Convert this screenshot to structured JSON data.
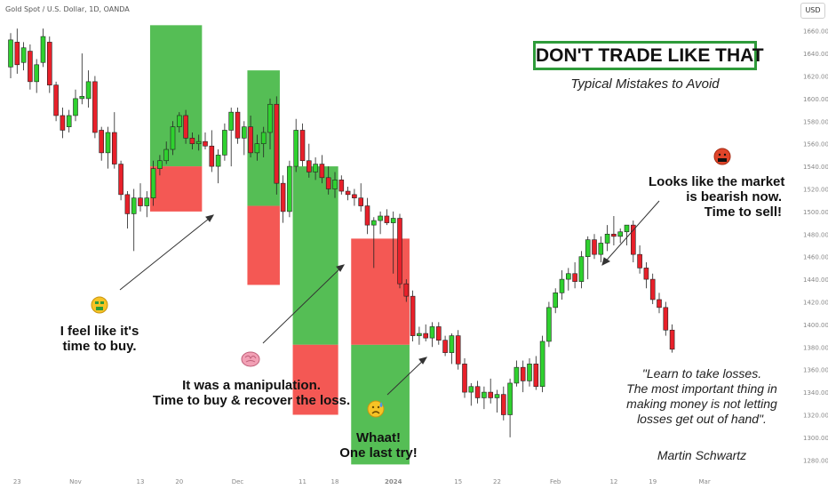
{
  "symbol": "Gold Spot / U.S. Dollar, 1D, OANDA",
  "currency": "USD",
  "headline": "DON'T TRADE LIKE THAT",
  "subheadline": "Typical Mistakes to Avoid",
  "notes": {
    "buy": [
      "I feel like it's",
      "time to buy."
    ],
    "manipulation": [
      "It was a manipulation.",
      "Time to buy & recover the loss."
    ],
    "last_try": [
      "Whaat!",
      "One last try!"
    ],
    "bearish": [
      "Looks like the market",
      "is bearish now.",
      "Time to sell!"
    ]
  },
  "quote": [
    "\"Learn to take losses.",
    "The most important thing in",
    "making money is not letting",
    "losses get out of hand\"."
  ],
  "quote_author": "Martin Schwartz",
  "icons": {
    "buy": "money-mouth-face-icon",
    "manipulation": "brain-icon",
    "last_try": "sad-sweat-face-icon",
    "bearish": "cursing-face-icon"
  },
  "colors": {
    "up_candle": "#2fd12f",
    "down_candle": "#e8202a",
    "profit_zone": "#4cbb4c",
    "loss_zone": "#f23b36",
    "headline_border": "#2e9b3a"
  },
  "chart_data": {
    "type": "candlestick",
    "title": "Gold Spot / U.S. Dollar, 1D, OANDA",
    "ylim": [
      1270,
      1670
    ],
    "y_ticks": [
      1280,
      1300,
      1320,
      1340,
      1360,
      1380,
      1400,
      1420,
      1440,
      1460,
      1480,
      1500,
      1520,
      1540,
      1560,
      1580,
      1600,
      1620,
      1640,
      1660
    ],
    "x_tick_labels": [
      "23",
      "Nov",
      "13",
      "20",
      "Dec",
      "11",
      "18",
      "2024",
      "15",
      "22",
      "Feb",
      "12",
      "19",
      "Mar"
    ],
    "x_tick_indices": [
      1,
      10,
      20,
      26,
      35,
      45,
      50,
      59,
      69,
      75,
      84,
      93,
      99,
      107
    ],
    "candles": [
      {
        "o": 1628,
        "h": 1658,
        "l": 1618,
        "c": 1652
      },
      {
        "o": 1650,
        "h": 1662,
        "l": 1622,
        "c": 1630
      },
      {
        "o": 1632,
        "h": 1650,
        "l": 1625,
        "c": 1645
      },
      {
        "o": 1642,
        "h": 1648,
        "l": 1608,
        "c": 1615
      },
      {
        "o": 1615,
        "h": 1635,
        "l": 1605,
        "c": 1630
      },
      {
        "o": 1632,
        "h": 1662,
        "l": 1628,
        "c": 1655
      },
      {
        "o": 1650,
        "h": 1655,
        "l": 1605,
        "c": 1612
      },
      {
        "o": 1612,
        "h": 1615,
        "l": 1580,
        "c": 1585
      },
      {
        "o": 1585,
        "h": 1592,
        "l": 1565,
        "c": 1572
      },
      {
        "o": 1575,
        "h": 1590,
        "l": 1570,
        "c": 1585
      },
      {
        "o": 1585,
        "h": 1608,
        "l": 1580,
        "c": 1600
      },
      {
        "o": 1600,
        "h": 1640,
        "l": 1595,
        "c": 1602
      },
      {
        "o": 1600,
        "h": 1625,
        "l": 1592,
        "c": 1615
      },
      {
        "o": 1615,
        "h": 1620,
        "l": 1565,
        "c": 1570
      },
      {
        "o": 1572,
        "h": 1575,
        "l": 1545,
        "c": 1552
      },
      {
        "o": 1552,
        "h": 1575,
        "l": 1538,
        "c": 1570
      },
      {
        "o": 1570,
        "h": 1588,
        "l": 1538,
        "c": 1542
      },
      {
        "o": 1542,
        "h": 1545,
        "l": 1510,
        "c": 1515
      },
      {
        "o": 1515,
        "h": 1518,
        "l": 1485,
        "c": 1498
      },
      {
        "o": 1498,
        "h": 1520,
        "l": 1465,
        "c": 1512
      },
      {
        "o": 1512,
        "h": 1525,
        "l": 1500,
        "c": 1505
      },
      {
        "o": 1505,
        "h": 1518,
        "l": 1495,
        "c": 1512
      },
      {
        "o": 1512,
        "h": 1545,
        "l": 1505,
        "c": 1538
      },
      {
        "o": 1538,
        "h": 1550,
        "l": 1532,
        "c": 1545
      },
      {
        "o": 1545,
        "h": 1562,
        "l": 1542,
        "c": 1555
      },
      {
        "o": 1555,
        "h": 1580,
        "l": 1550,
        "c": 1575
      },
      {
        "o": 1575,
        "h": 1588,
        "l": 1570,
        "c": 1585
      },
      {
        "o": 1585,
        "h": 1590,
        "l": 1560,
        "c": 1565
      },
      {
        "o": 1565,
        "h": 1570,
        "l": 1555,
        "c": 1560
      },
      {
        "o": 1560,
        "h": 1568,
        "l": 1554,
        "c": 1562
      },
      {
        "o": 1562,
        "h": 1570,
        "l": 1555,
        "c": 1558
      },
      {
        "o": 1558,
        "h": 1572,
        "l": 1535,
        "c": 1540
      },
      {
        "o": 1540,
        "h": 1555,
        "l": 1525,
        "c": 1550
      },
      {
        "o": 1550,
        "h": 1578,
        "l": 1545,
        "c": 1572
      },
      {
        "o": 1572,
        "h": 1592,
        "l": 1540,
        "c": 1588
      },
      {
        "o": 1588,
        "h": 1592,
        "l": 1560,
        "c": 1565
      },
      {
        "o": 1565,
        "h": 1580,
        "l": 1550,
        "c": 1575
      },
      {
        "o": 1575,
        "h": 1585,
        "l": 1548,
        "c": 1552
      },
      {
        "o": 1552,
        "h": 1568,
        "l": 1545,
        "c": 1560
      },
      {
        "o": 1560,
        "h": 1575,
        "l": 1548,
        "c": 1570
      },
      {
        "o": 1570,
        "h": 1600,
        "l": 1555,
        "c": 1595
      },
      {
        "o": 1595,
        "h": 1602,
        "l": 1515,
        "c": 1525
      },
      {
        "o": 1525,
        "h": 1532,
        "l": 1490,
        "c": 1500
      },
      {
        "o": 1500,
        "h": 1545,
        "l": 1495,
        "c": 1540
      },
      {
        "o": 1540,
        "h": 1582,
        "l": 1535,
        "c": 1572
      },
      {
        "o": 1572,
        "h": 1578,
        "l": 1540,
        "c": 1545
      },
      {
        "o": 1545,
        "h": 1560,
        "l": 1530,
        "c": 1535
      },
      {
        "o": 1535,
        "h": 1548,
        "l": 1528,
        "c": 1542
      },
      {
        "o": 1542,
        "h": 1550,
        "l": 1525,
        "c": 1530
      },
      {
        "o": 1530,
        "h": 1540,
        "l": 1515,
        "c": 1520
      },
      {
        "o": 1520,
        "h": 1535,
        "l": 1512,
        "c": 1528
      },
      {
        "o": 1528,
        "h": 1532,
        "l": 1515,
        "c": 1518
      },
      {
        "o": 1518,
        "h": 1522,
        "l": 1510,
        "c": 1515
      },
      {
        "o": 1515,
        "h": 1520,
        "l": 1505,
        "c": 1512
      },
      {
        "o": 1512,
        "h": 1525,
        "l": 1500,
        "c": 1505
      },
      {
        "o": 1505,
        "h": 1512,
        "l": 1480,
        "c": 1488
      },
      {
        "o": 1488,
        "h": 1495,
        "l": 1450,
        "c": 1492
      },
      {
        "o": 1492,
        "h": 1500,
        "l": 1480,
        "c": 1496
      },
      {
        "o": 1496,
        "h": 1502,
        "l": 1488,
        "c": 1490
      },
      {
        "o": 1490,
        "h": 1500,
        "l": 1445,
        "c": 1494
      },
      {
        "o": 1494,
        "h": 1498,
        "l": 1432,
        "c": 1436
      },
      {
        "o": 1436,
        "h": 1440,
        "l": 1420,
        "c": 1425
      },
      {
        "o": 1425,
        "h": 1430,
        "l": 1385,
        "c": 1390
      },
      {
        "o": 1390,
        "h": 1398,
        "l": 1382,
        "c": 1392
      },
      {
        "o": 1392,
        "h": 1400,
        "l": 1385,
        "c": 1388
      },
      {
        "o": 1388,
        "h": 1402,
        "l": 1380,
        "c": 1398
      },
      {
        "o": 1398,
        "h": 1402,
        "l": 1382,
        "c": 1386
      },
      {
        "o": 1386,
        "h": 1390,
        "l": 1372,
        "c": 1375
      },
      {
        "o": 1375,
        "h": 1392,
        "l": 1365,
        "c": 1390
      },
      {
        "o": 1390,
        "h": 1395,
        "l": 1360,
        "c": 1365
      },
      {
        "o": 1365,
        "h": 1370,
        "l": 1335,
        "c": 1340
      },
      {
        "o": 1340,
        "h": 1348,
        "l": 1328,
        "c": 1345
      },
      {
        "o": 1345,
        "h": 1350,
        "l": 1330,
        "c": 1335
      },
      {
        "o": 1335,
        "h": 1345,
        "l": 1325,
        "c": 1340
      },
      {
        "o": 1340,
        "h": 1352,
        "l": 1330,
        "c": 1335
      },
      {
        "o": 1335,
        "h": 1342,
        "l": 1322,
        "c": 1338
      },
      {
        "o": 1338,
        "h": 1345,
        "l": 1315,
        "c": 1320
      },
      {
        "o": 1320,
        "h": 1352,
        "l": 1300,
        "c": 1348
      },
      {
        "o": 1348,
        "h": 1368,
        "l": 1345,
        "c": 1362
      },
      {
        "o": 1362,
        "h": 1368,
        "l": 1340,
        "c": 1350
      },
      {
        "o": 1350,
        "h": 1370,
        "l": 1345,
        "c": 1365
      },
      {
        "o": 1365,
        "h": 1372,
        "l": 1342,
        "c": 1345
      },
      {
        "o": 1345,
        "h": 1390,
        "l": 1340,
        "c": 1385
      },
      {
        "o": 1385,
        "h": 1420,
        "l": 1380,
        "c": 1415
      },
      {
        "o": 1415,
        "h": 1432,
        "l": 1410,
        "c": 1428
      },
      {
        "o": 1428,
        "h": 1448,
        "l": 1422,
        "c": 1440
      },
      {
        "o": 1440,
        "h": 1450,
        "l": 1430,
        "c": 1445
      },
      {
        "o": 1445,
        "h": 1455,
        "l": 1432,
        "c": 1438
      },
      {
        "o": 1438,
        "h": 1465,
        "l": 1432,
        "c": 1460
      },
      {
        "o": 1460,
        "h": 1478,
        "l": 1440,
        "c": 1475
      },
      {
        "o": 1475,
        "h": 1480,
        "l": 1458,
        "c": 1462
      },
      {
        "o": 1462,
        "h": 1478,
        "l": 1455,
        "c": 1472
      },
      {
        "o": 1472,
        "h": 1488,
        "l": 1465,
        "c": 1480
      },
      {
        "o": 1480,
        "h": 1496,
        "l": 1470,
        "c": 1478
      },
      {
        "o": 1478,
        "h": 1485,
        "l": 1472,
        "c": 1482
      },
      {
        "o": 1482,
        "h": 1488,
        "l": 1470,
        "c": 1488
      },
      {
        "o": 1488,
        "h": 1492,
        "l": 1455,
        "c": 1462
      },
      {
        "o": 1462,
        "h": 1470,
        "l": 1445,
        "c": 1450
      },
      {
        "o": 1450,
        "h": 1455,
        "l": 1432,
        "c": 1440
      },
      {
        "o": 1440,
        "h": 1445,
        "l": 1418,
        "c": 1422
      },
      {
        "o": 1422,
        "h": 1428,
        "l": 1410,
        "c": 1415
      },
      {
        "o": 1415,
        "h": 1420,
        "l": 1390,
        "c": 1395
      },
      {
        "o": 1395,
        "h": 1400,
        "l": 1375,
        "c": 1378
      }
    ],
    "positions": [
      {
        "name": "trade-1",
        "start": 22,
        "end": 29,
        "entry": 1540,
        "target": "1665",
        "stop": 1500
      },
      {
        "name": "trade-2",
        "start": 37,
        "end": 41,
        "entry": 1505,
        "target": "1625",
        "stop": 1435
      },
      {
        "name": "trade-3",
        "start": 44,
        "end": 50,
        "entry": 1382,
        "target": "1540",
        "stop": 1320
      },
      {
        "name": "trade-4 (short)",
        "start": 53,
        "end": 61,
        "entry": 1382,
        "target": "1276",
        "stop": 1476
      }
    ],
    "annotations": [
      "I feel like it's time to buy.",
      "It was a manipulation. Time to buy & recover the loss.",
      "Whaat! One last try!",
      "Looks like the market is bearish now. Time to sell!"
    ]
  }
}
